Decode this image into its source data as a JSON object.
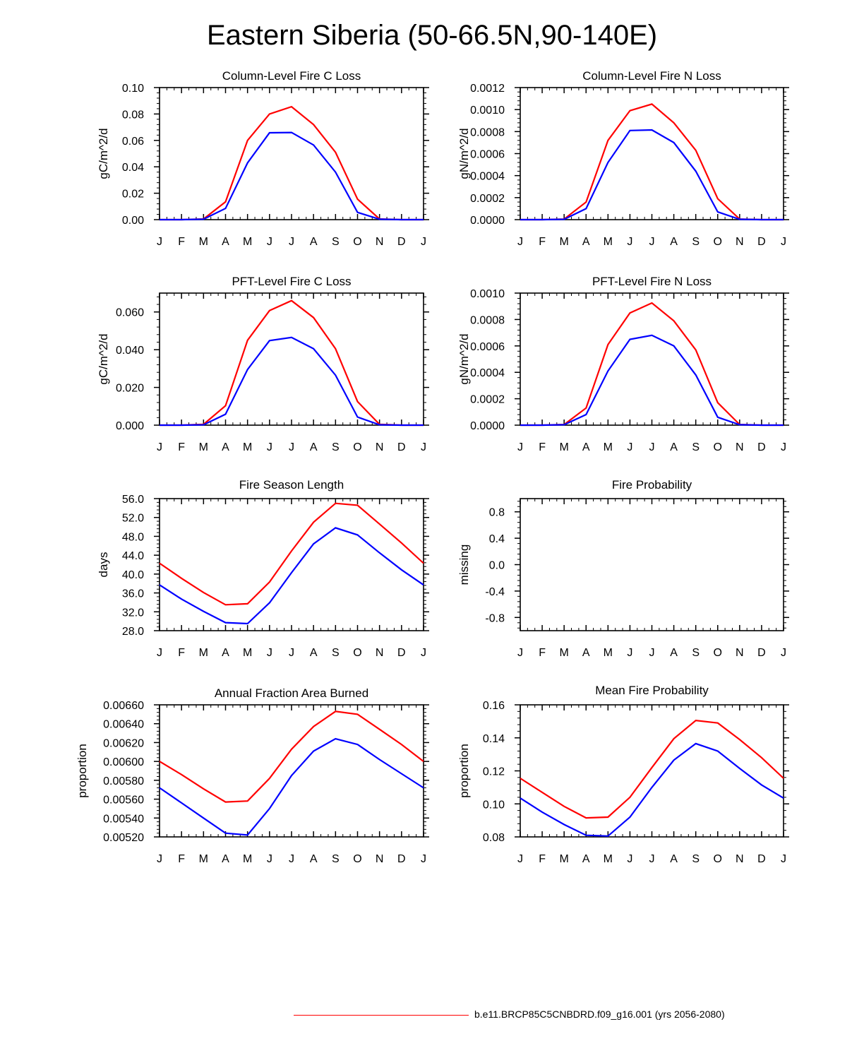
{
  "page": {
    "title": "Eastern Siberia (50-66.5N,90-140E)"
  },
  "legend": {
    "label": "b.e11.BRCP85C5CNBDRD.f09_g16.001 (yrs 2056-2080)",
    "color": "#ff0000"
  },
  "colors": {
    "red": "#ff0000",
    "blue": "#0000ff"
  },
  "chart_data": [
    {
      "id": "col-fire-c",
      "type": "line",
      "title": "Column-Level Fire C Loss",
      "ylabel": "gC/m^2/d",
      "xlabel": "",
      "categories": [
        "J",
        "F",
        "M",
        "A",
        "M",
        "J",
        "J",
        "A",
        "S",
        "O",
        "N",
        "D",
        "J"
      ],
      "ylim": [
        0,
        0.1
      ],
      "yticks": [
        0,
        0.02,
        0.04,
        0.06,
        0.08,
        0.1
      ],
      "ytick_labels": [
        "0.00",
        "0.02",
        "0.04",
        "0.06",
        "0.08",
        "0.10"
      ],
      "series": [
        {
          "name": "red",
          "color": "#ff0000",
          "values": [
            0.0,
            0.0,
            0.0005,
            0.0135,
            0.06,
            0.08,
            0.0855,
            0.072,
            0.051,
            0.0155,
            0.0005,
            0.0,
            0.0
          ]
        },
        {
          "name": "blue",
          "color": "#0000ff",
          "values": [
            0.0,
            0.0,
            0.0003,
            0.0085,
            0.043,
            0.0658,
            0.066,
            0.0565,
            0.036,
            0.0055,
            0.0003,
            0.0,
            0.0
          ]
        }
      ]
    },
    {
      "id": "col-fire-n",
      "type": "line",
      "title": "Column-Level Fire N Loss",
      "ylabel": "gN/m^2/d",
      "xlabel": "",
      "categories": [
        "J",
        "F",
        "M",
        "A",
        "M",
        "J",
        "J",
        "A",
        "S",
        "O",
        "N",
        "D",
        "J"
      ],
      "ylim": [
        0,
        0.0012
      ],
      "yticks": [
        0,
        0.0002,
        0.0004,
        0.0006,
        0.0008,
        0.001,
        0.0012
      ],
      "ytick_labels": [
        "0.0000",
        "0.0002",
        "0.0004",
        "0.0006",
        "0.0008",
        "0.0010",
        "0.0012"
      ],
      "series": [
        {
          "name": "red",
          "color": "#ff0000",
          "values": [
            0.0,
            0.0,
            5e-06,
            0.00016,
            0.00072,
            0.00099,
            0.00105,
            0.00088,
            0.00063,
            0.00019,
            5e-06,
            0.0,
            0.0
          ]
        },
        {
          "name": "blue",
          "color": "#0000ff",
          "values": [
            0.0,
            0.0,
            3e-06,
            0.0001,
            0.00052,
            0.00081,
            0.000815,
            0.0007,
            0.00044,
            7e-05,
            3e-06,
            0.0,
            0.0
          ]
        }
      ]
    },
    {
      "id": "pft-fire-c",
      "type": "line",
      "title": "PFT-Level Fire C Loss",
      "ylabel": "gC/m^2/d",
      "xlabel": "",
      "categories": [
        "J",
        "F",
        "M",
        "A",
        "M",
        "J",
        "J",
        "A",
        "S",
        "O",
        "N",
        "D",
        "J"
      ],
      "ylim": [
        0,
        0.07
      ],
      "yticks": [
        0,
        0.02,
        0.04,
        0.06
      ],
      "ytick_labels": [
        "0.000",
        "0.020",
        "0.040",
        "0.060"
      ],
      "series": [
        {
          "name": "red",
          "color": "#ff0000",
          "values": [
            0.0,
            0.0,
            0.0004,
            0.0103,
            0.045,
            0.0607,
            0.066,
            0.057,
            0.0405,
            0.0125,
            0.0004,
            0.0,
            0.0
          ]
        },
        {
          "name": "blue",
          "color": "#0000ff",
          "values": [
            0.0,
            0.0,
            0.0002,
            0.0058,
            0.0295,
            0.0448,
            0.0465,
            0.0405,
            0.0265,
            0.0043,
            0.0002,
            0.0,
            0.0
          ]
        }
      ]
    },
    {
      "id": "pft-fire-n",
      "type": "line",
      "title": "PFT-Level Fire N Loss",
      "ylabel": "gN/m^2/d",
      "xlabel": "",
      "categories": [
        "J",
        "F",
        "M",
        "A",
        "M",
        "J",
        "J",
        "A",
        "S",
        "O",
        "N",
        "D",
        "J"
      ],
      "ylim": [
        0,
        0.001
      ],
      "yticks": [
        0,
        0.0002,
        0.0004,
        0.0006,
        0.0008,
        0.001
      ],
      "ytick_labels": [
        "0.0000",
        "0.0002",
        "0.0004",
        "0.0006",
        "0.0008",
        "0.0010"
      ],
      "series": [
        {
          "name": "red",
          "color": "#ff0000",
          "values": [
            0.0,
            0.0,
            5e-06,
            0.00013,
            0.00061,
            0.00085,
            0.000925,
            0.00079,
            0.00057,
            0.00017,
            5e-06,
            0.0,
            0.0
          ]
        },
        {
          "name": "blue",
          "color": "#0000ff",
          "values": [
            0.0,
            0.0,
            3e-06,
            8e-05,
            0.00041,
            0.00065,
            0.00068,
            0.0006,
            0.00038,
            6e-05,
            3e-06,
            0.0,
            0.0
          ]
        }
      ]
    },
    {
      "id": "fire-season-length",
      "type": "line",
      "title": "Fire Season Length",
      "ylabel": "days",
      "xlabel": "",
      "categories": [
        "J",
        "F",
        "M",
        "A",
        "M",
        "J",
        "J",
        "A",
        "S",
        "O",
        "N",
        "D",
        "J"
      ],
      "ylim": [
        28,
        56
      ],
      "yticks": [
        28,
        32,
        36,
        40,
        44,
        48,
        52,
        56
      ],
      "ytick_labels": [
        "28.0",
        "32.0",
        "36.0",
        "40.0",
        "44.0",
        "48.0",
        "52.0",
        "56.0"
      ],
      "series": [
        {
          "name": "red",
          "color": "#ff0000",
          "values": [
            42.3,
            39.1,
            36.1,
            33.5,
            33.7,
            38.3,
            44.9,
            51.0,
            55.0,
            54.6,
            50.6,
            46.6,
            42.3
          ]
        },
        {
          "name": "blue",
          "color": "#0000ff",
          "values": [
            37.7,
            34.7,
            32.1,
            29.7,
            29.5,
            33.9,
            40.3,
            46.4,
            49.8,
            48.3,
            44.5,
            40.9,
            37.7
          ]
        }
      ]
    },
    {
      "id": "fire-probability",
      "type": "line",
      "title": "Fire Probability",
      "ylabel": "missing",
      "xlabel": "",
      "categories": [
        "J",
        "F",
        "M",
        "A",
        "M",
        "J",
        "J",
        "A",
        "S",
        "O",
        "N",
        "D",
        "J"
      ],
      "ylim": [
        -1,
        1
      ],
      "yticks": [
        -0.8,
        -0.4,
        0.0,
        0.4,
        0.8
      ],
      "ytick_labels": [
        "-0.8",
        "-0.4",
        "0.0",
        "0.4",
        "0.8"
      ],
      "series": []
    },
    {
      "id": "annual-fraction-area-burned",
      "type": "line",
      "title": "Annual Fraction Area Burned",
      "ylabel": "proportion",
      "xlabel": "",
      "categories": [
        "J",
        "F",
        "M",
        "A",
        "M",
        "J",
        "J",
        "A",
        "S",
        "O",
        "N",
        "D",
        "J"
      ],
      "ylim": [
        0.0052,
        0.0066
      ],
      "yticks": [
        0.0052,
        0.0054,
        0.0056,
        0.0058,
        0.006,
        0.0062,
        0.0064,
        0.0066
      ],
      "ytick_labels": [
        "0.00520",
        "0.00540",
        "0.00560",
        "0.00580",
        "0.00600",
        "0.00620",
        "0.00640",
        "0.00660"
      ],
      "series": [
        {
          "name": "red",
          "color": "#ff0000",
          "values": [
            0.006,
            0.00586,
            0.00571,
            0.00557,
            0.00558,
            0.00582,
            0.00613,
            0.00637,
            0.00653,
            0.0065,
            0.00634,
            0.00618,
            0.006
          ]
        },
        {
          "name": "blue",
          "color": "#0000ff",
          "values": [
            0.00572,
            0.00556,
            0.0054,
            0.00524,
            0.00522,
            0.0055,
            0.00585,
            0.00611,
            0.00624,
            0.00618,
            0.00602,
            0.00587,
            0.00572
          ]
        }
      ]
    },
    {
      "id": "mean-fire-probability",
      "type": "line",
      "title": "Mean Fire Probability",
      "ylabel": "proportion",
      "xlabel": "",
      "categories": [
        "J",
        "F",
        "M",
        "A",
        "M",
        "J",
        "J",
        "A",
        "S",
        "O",
        "N",
        "D",
        "J"
      ],
      "ylim": [
        0.08,
        0.16
      ],
      "yticks": [
        0.08,
        0.1,
        0.12,
        0.14,
        0.16
      ],
      "ytick_labels": [
        "0.08",
        "0.10",
        "0.12",
        "0.14",
        "0.16"
      ],
      "series": [
        {
          "name": "red",
          "color": "#ff0000",
          "values": [
            0.1155,
            0.107,
            0.0985,
            0.0915,
            0.092,
            0.104,
            0.122,
            0.1395,
            0.1505,
            0.149,
            0.139,
            0.128,
            0.1155
          ]
        },
        {
          "name": "blue",
          "color": "#0000ff",
          "values": [
            0.1035,
            0.095,
            0.0875,
            0.081,
            0.0805,
            0.092,
            0.11,
            0.1265,
            0.1365,
            0.132,
            0.1215,
            0.1115,
            0.1035
          ]
        }
      ]
    }
  ]
}
